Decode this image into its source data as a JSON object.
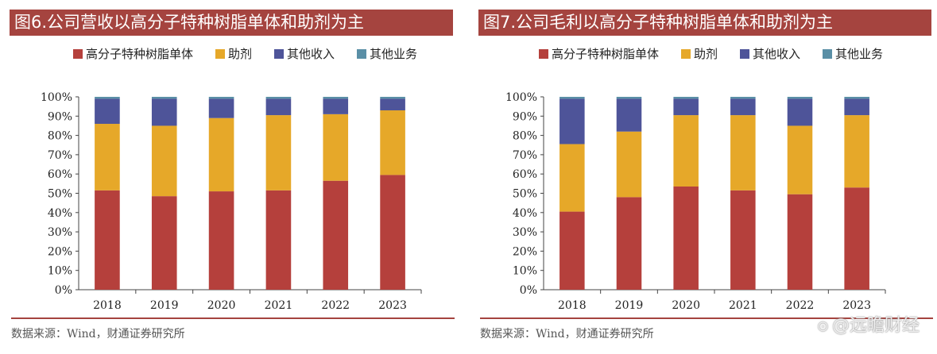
{
  "watermark": "@远瞻财经",
  "chart_data": [
    {
      "type": "bar",
      "stacked": true,
      "title": "图6.公司营收以高分子特种树脂单体和助剂为主",
      "source": "数据来源：Wind，财通证券研究所",
      "categories": [
        "2018",
        "2019",
        "2020",
        "2021",
        "2022",
        "2023"
      ],
      "yticks": [
        "0%",
        "10%",
        "20%",
        "30%",
        "40%",
        "50%",
        "60%",
        "70%",
        "80%",
        "90%",
        "100%"
      ],
      "ylim": [
        0,
        100
      ],
      "legend_position": "top",
      "grid": false,
      "series": [
        {
          "name": "高分子特种树脂单体",
          "color": "#b5403c",
          "values": [
            51.5,
            48.5,
            51,
            51.5,
            56.5,
            59.5
          ]
        },
        {
          "name": "助剂",
          "color": "#e6a829",
          "values": [
            34.5,
            36.5,
            38,
            39,
            34.5,
            33.5
          ]
        },
        {
          "name": "其他收入",
          "color": "#4e5499",
          "values": [
            13,
            14,
            10,
            8.5,
            8,
            6
          ]
        },
        {
          "name": "其他业务",
          "color": "#5a8fa6",
          "values": [
            1,
            1,
            1,
            1,
            1,
            1
          ]
        }
      ]
    },
    {
      "type": "bar",
      "stacked": true,
      "title": "图7.公司毛利以高分子特种树脂单体和助剂为主",
      "source": "数据来源：Wind，财通证券研究所",
      "categories": [
        "2018",
        "2019",
        "2020",
        "2021",
        "2022",
        "2023"
      ],
      "yticks": [
        "0%",
        "10%",
        "20%",
        "30%",
        "40%",
        "50%",
        "60%",
        "70%",
        "80%",
        "90%",
        "100%"
      ],
      "ylim": [
        0,
        100
      ],
      "legend_position": "top",
      "grid": false,
      "series": [
        {
          "name": "高分子特种树脂单体",
          "color": "#b5403c",
          "values": [
            40.5,
            48,
            53.5,
            51.5,
            49.5,
            53
          ]
        },
        {
          "name": "助剂",
          "color": "#e6a829",
          "values": [
            35,
            34,
            37,
            39,
            35.5,
            37.5
          ]
        },
        {
          "name": "其他收入",
          "color": "#4e5499",
          "values": [
            23.5,
            17,
            8.5,
            8.5,
            14,
            8.5
          ]
        },
        {
          "name": "其他业务",
          "color": "#5a8fa6",
          "values": [
            1,
            1,
            1,
            1,
            1,
            1
          ]
        }
      ]
    }
  ]
}
